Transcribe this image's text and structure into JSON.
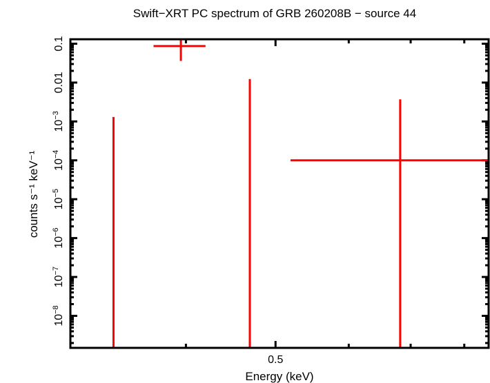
{
  "chart_data": {
    "type": "scatter",
    "title": "Swift−XRT PC spectrum of GRB 260208B − source 44",
    "xlabel": "Energy (keV)",
    "ylabel": "counts s⁻¹ keV⁻¹",
    "xscale": "log",
    "yscale": "log",
    "xlim": [
      0.3,
      0.85
    ],
    "ylim": [
      1.5e-09,
      0.13
    ],
    "x_ticks": [
      {
        "value": 0.5,
        "label": "0.5"
      }
    ],
    "x_minor_ticks": [
      0.4,
      0.6,
      0.7,
      0.8
    ],
    "y_ticks": [
      {
        "value": 0.1,
        "label": "0.1"
      },
      {
        "value": 0.01,
        "label": "0.01"
      },
      {
        "value": 0.001,
        "label": "10",
        "exp": "−3"
      },
      {
        "value": 0.0001,
        "label": "10",
        "exp": "−4"
      },
      {
        "value": 1e-05,
        "label": "10",
        "exp": "−5"
      },
      {
        "value": 1e-06,
        "label": "10",
        "exp": "−6"
      },
      {
        "value": 1e-07,
        "label": "10",
        "exp": "−7"
      },
      {
        "value": 1e-08,
        "label": "10",
        "exp": "−8"
      }
    ],
    "grid": false,
    "series_color": "#ff0000",
    "points": [
      {
        "x": 0.334,
        "xlo": 0.333,
        "xhi": 0.335,
        "y": null,
        "ylo": null,
        "yhi": 0.0013
      },
      {
        "x": 0.395,
        "xlo": 0.369,
        "xhi": 0.42,
        "y": 0.087,
        "ylo": 0.036,
        "yhi": 0.15
      },
      {
        "x": 0.469,
        "xlo": 0.468,
        "xhi": 0.47,
        "y": null,
        "ylo": null,
        "yhi": 0.0123
      },
      {
        "x": 0.682,
        "xlo": 0.519,
        "xhi": 0.9,
        "y": 0.0001,
        "ylo": null,
        "yhi": 0.0037
      }
    ]
  }
}
